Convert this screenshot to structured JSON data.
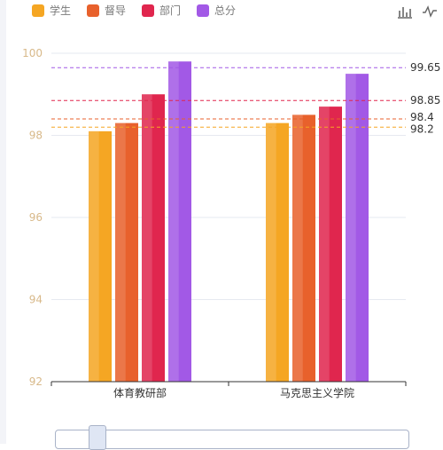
{
  "legend": {
    "items": [
      {
        "label": "学生",
        "color": "#F5A623"
      },
      {
        "label": "督导",
        "color": "#E8612C"
      },
      {
        "label": "部门",
        "color": "#E0264E"
      },
      {
        "label": "总分",
        "color": "#A259E6"
      }
    ]
  },
  "toolbox": {
    "icons": [
      "bar-chart-icon",
      "line-chart-icon"
    ]
  },
  "chart_data": {
    "type": "bar",
    "categories": [
      "体育教研部",
      "马克思主义学院"
    ],
    "series": [
      {
        "name": "学生",
        "values": [
          98.1,
          98.3
        ],
        "color": "#F5A623"
      },
      {
        "name": "督导",
        "values": [
          98.3,
          98.5
        ],
        "color": "#E8612C"
      },
      {
        "name": "部门",
        "values": [
          99.0,
          98.7
        ],
        "color": "#E0264E"
      },
      {
        "name": "总分",
        "values": [
          99.8,
          99.5
        ],
        "color": "#A259E6"
      }
    ],
    "ylim": [
      92,
      100
    ],
    "yticks": [
      92,
      94,
      96,
      98,
      100
    ],
    "grid": true,
    "legend_position": "top-left",
    "mark_lines": [
      {
        "value": 99.65,
        "label": "99.65",
        "color": "#A259E6"
      },
      {
        "value": 98.85,
        "label": "98.85",
        "color": "#E0264E"
      },
      {
        "value": 98.4,
        "label": "98.4",
        "color": "#E8612C"
      },
      {
        "value": 98.2,
        "label": "98.2",
        "color": "#F5A623"
      }
    ]
  }
}
